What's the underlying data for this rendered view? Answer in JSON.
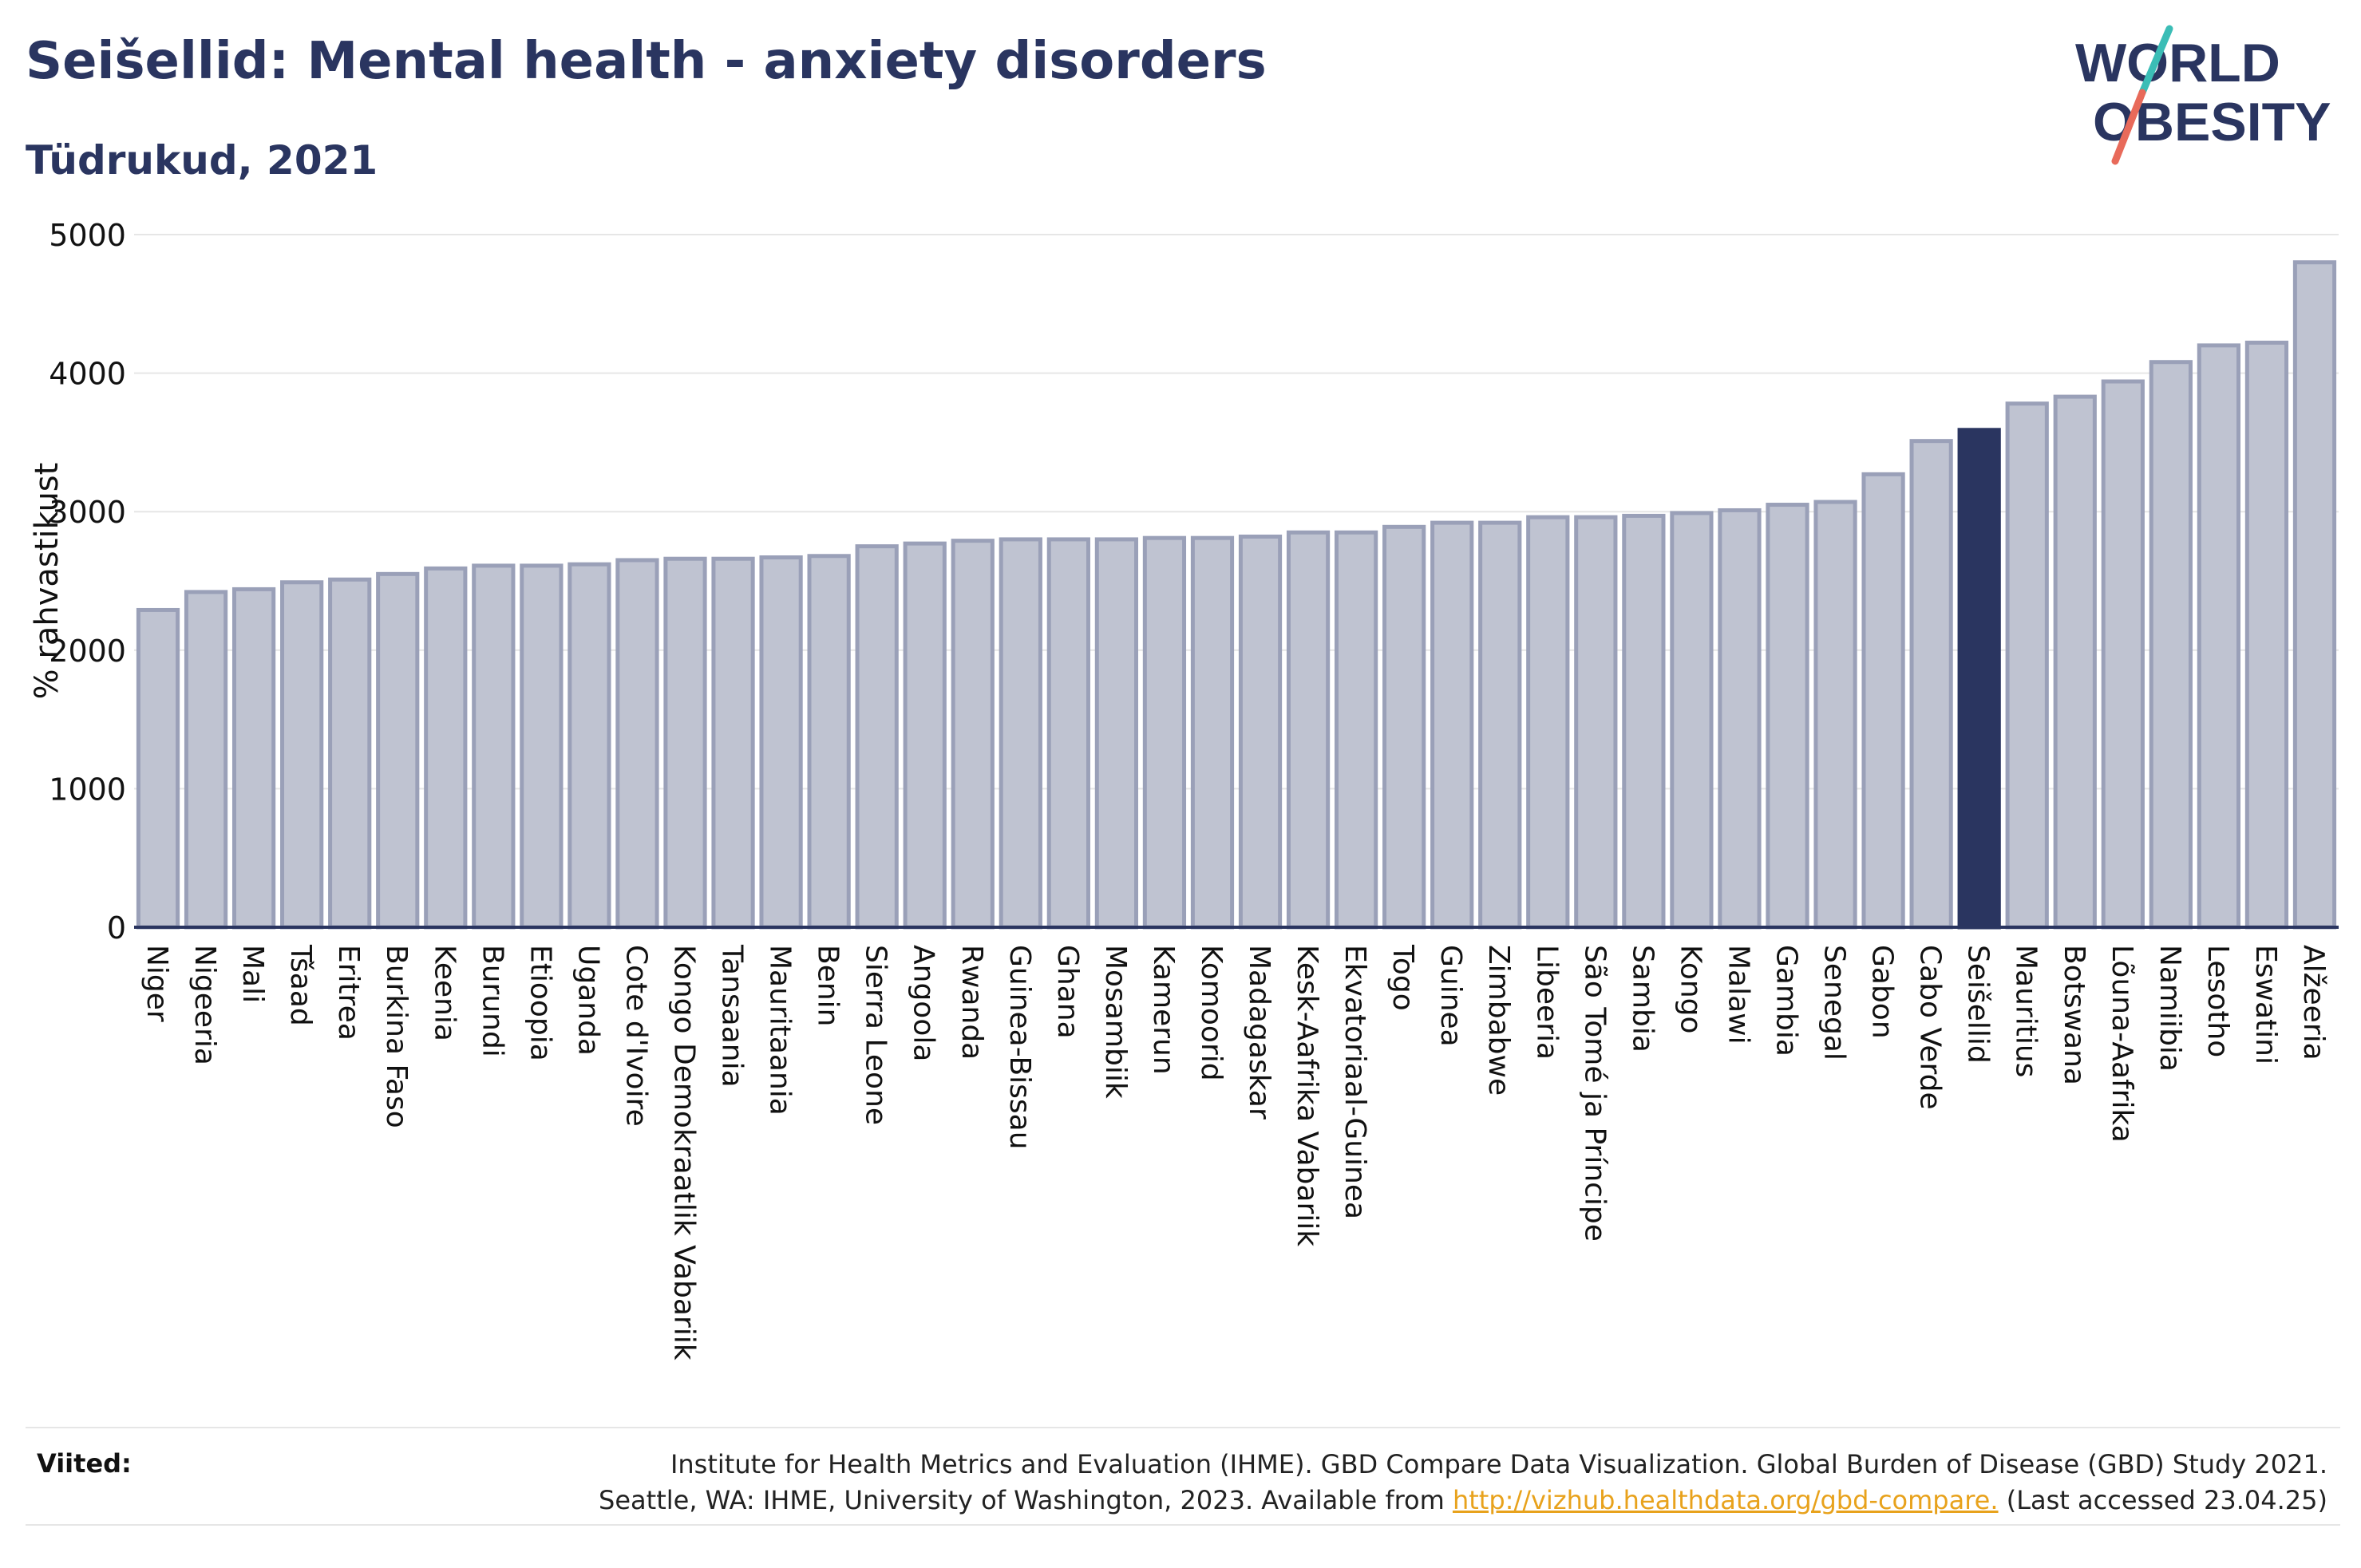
{
  "header": {
    "title": "Seišellid: Mental health - anxiety disorders",
    "subtitle": "Tüdrukud, 2021"
  },
  "logo": {
    "line1": "WORLD",
    "line2": "OBESITY",
    "text_color": "#2a3560",
    "slash_color_top": "#3bbdb6",
    "slash_color_bottom": "#e86a5a"
  },
  "chart_data": {
    "type": "bar",
    "ylabel": "% rahvastikust",
    "ylim": [
      0,
      5000
    ],
    "yticks": [
      0,
      1000,
      2000,
      3000,
      4000,
      5000
    ],
    "grid": true,
    "bar_color": "#bfc3d1",
    "bar_edge_color": "#9aa0b8",
    "highlight_color": "#2a3560",
    "highlight_category": "Seišellid",
    "categories": [
      "Niger",
      "Nigeeria",
      "Mali",
      "Tšaad",
      "Eritrea",
      "Burkina Faso",
      "Keenia",
      "Burundi",
      "Etioopia",
      "Uganda",
      "Cote d'Ivoire",
      "Kongo Demokraatlik Vabariik",
      "Tansaania",
      "Mauritaania",
      "Benin",
      "Sierra Leone",
      "Angoola",
      "Rwanda",
      "Guinea-Bissau",
      "Ghana",
      "Mosambiik",
      "Kamerun",
      "Komoorid",
      "Madagaskar",
      "Kesk-Aafrika Vabariik",
      "Ekvatoriaal-Guinea",
      "Togo",
      "Guinea",
      "Zimbabwe",
      "Libeeria",
      "São Tomé ja Príncipe",
      "Sambia",
      "Kongo",
      "Malawi",
      "Gambia",
      "Senegal",
      "Gabon",
      "Cabo Verde",
      "Seišellid",
      "Mauritius",
      "Botswana",
      "Lõuna-Aafrika",
      "Namiibia",
      "Lesotho",
      "Eswatini",
      "Alžeeria"
    ],
    "values": [
      2290,
      2420,
      2440,
      2490,
      2510,
      2550,
      2590,
      2610,
      2610,
      2620,
      2650,
      2660,
      2660,
      2670,
      2680,
      2750,
      2770,
      2790,
      2800,
      2800,
      2800,
      2810,
      2810,
      2820,
      2850,
      2850,
      2890,
      2920,
      2920,
      2960,
      2960,
      2970,
      2990,
      3010,
      3050,
      3070,
      3270,
      3510,
      3590,
      3780,
      3830,
      3940,
      4080,
      4200,
      4220,
      4800
    ]
  },
  "footer": {
    "sources_label": "Viited:",
    "source_line1": "Institute for Health Metrics and Evaluation (IHME). GBD Compare Data Visualization. Global Burden of Disease (GBD) Study 2021.",
    "source_line2_prefix": "Seattle, WA: IHME, University of Washington, 2023. Available from ",
    "source_link": "http://vizhub.healthdata.org/gbd-compare.",
    "source_line2_suffix": " (Last accessed 23.04.25)"
  }
}
